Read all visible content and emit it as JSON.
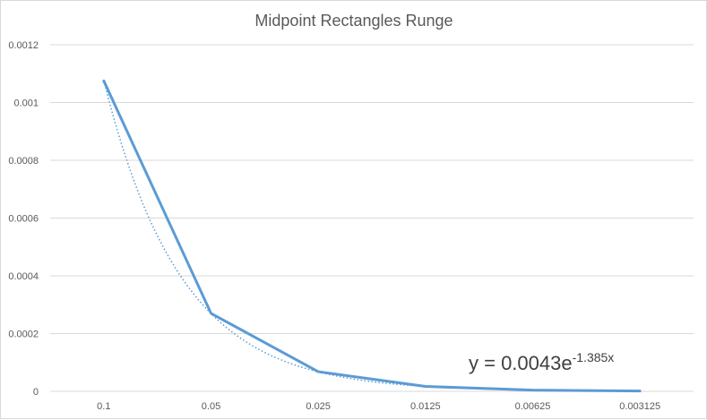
{
  "chart_data": {
    "type": "line",
    "title": "Midpoint Rectangles Runge",
    "xlabel": "",
    "ylabel": "",
    "categories": [
      "0.1",
      "0.05",
      "0.025",
      "0.0125",
      "0.00625",
      "0.003125"
    ],
    "series": [
      {
        "values": [
          0.001075,
          0.00027,
          6.8e-05,
          1.7e-05,
          4.3e-06,
          1.1e-06
        ],
        "color": "#5b9bd5",
        "style": "solid"
      }
    ],
    "trendline": {
      "type": "exponential",
      "coefficient": 0.0043,
      "exponent": -1.385,
      "label_prefix": "y = 0.0043e",
      "label_exponent": "-1.385x",
      "color": "#5b9bd5",
      "style": "dotted"
    },
    "ylim": [
      0,
      0.0012
    ],
    "yticks": [
      "0",
      "0.0002",
      "0.0004",
      "0.0006",
      "0.0008",
      "0.001",
      "0.0012"
    ],
    "grid": true,
    "legend": "none",
    "gridline_color": "#d9d9d9"
  }
}
